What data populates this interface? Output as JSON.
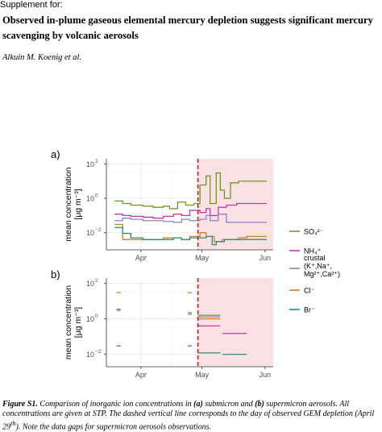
{
  "header": {
    "supplement_label": "Supplement for:",
    "title_line1": "Observed in-plume gaseous elemental mercury depletion suggests significant mercury",
    "title_line2": "scavenging by volcanic aerosols",
    "authors": "Alkuin M. Koenig et al."
  },
  "figure": {
    "caption": "Figure S1. Comparison of inorganic ion concentrations in (a) submicron and (b) supermicron aerosols. All concentrations are given at STP. The dashed vertical line corresponds to the day of observed GEM depletion (April 29th). Note the data gaps for supermicron aerosols observations.",
    "caption_parts": {
      "lead": "Figure S1.",
      "p1": " Comparison of inorganic ion concentrations in ",
      "a": "(a)",
      "p2": " submicron and ",
      "b": "(b)",
      "p3": " supermicron aerosols. All concentrations are given at STP. The dashed vertical line corresponds to the day of observed GEM depletion (April 29",
      "sup": "th",
      "p4": "). Note the data gaps for supermicron aerosols observations."
    },
    "colors": {
      "SO4": "#6a9a22",
      "NH4": "#c03a9e",
      "crustal": "#8a84c0",
      "Cl": "#d97a20",
      "Br": "#2a8f78",
      "shade": "#fbe1e3",
      "dashed_line": "#c81a20",
      "grid": "#e9e9e9"
    },
    "legend": [
      {
        "key": "SO4",
        "lines": [
          "SO₄²⁻"
        ]
      },
      {
        "key": "NH4",
        "lines": [
          "NH₄⁺"
        ]
      },
      {
        "key": "crustal",
        "lines": [
          "crustal",
          "(K⁺,Na⁺,",
          "Mg²⁺,Ca²⁺)"
        ]
      },
      {
        "key": "Cl",
        "lines": [
          "Cl⁻"
        ]
      },
      {
        "key": "Br",
        "lines": [
          "Br⁻"
        ]
      }
    ],
    "panels": [
      {
        "label": "a)",
        "ylabel": "mean concentration",
        "yunit": "[μg m⁻³]",
        "yticks": [
          "10",
          "10",
          "10"
        ],
        "yexp": [
          "2",
          "0",
          "−2"
        ],
        "xticks": [
          "Apr",
          "May",
          "Jun"
        ]
      },
      {
        "label": "b)",
        "ylabel": "mean concentration",
        "yunit": "[μg m⁻³]",
        "yticks": [
          "10",
          "10",
          "10"
        ],
        "yexp": [
          "2",
          "0",
          "−2"
        ],
        "xticks": [
          "Apr",
          "May",
          "Jun"
        ]
      }
    ]
  },
  "chart_data": [
    {
      "type": "line",
      "panel": "a",
      "y_scale": "log",
      "ylim": [
        0.001,
        200
      ],
      "xlim": [
        "2021-03-15",
        "2021-06-05"
      ],
      "event_date": "2021-04-29",
      "shaded_range": [
        "2021-04-29",
        "2021-06-05"
      ],
      "series": [
        {
          "key": "SO4",
          "points": [
            [
              "2021-03-19",
              0.7
            ],
            [
              "2021-03-23",
              0.5
            ],
            [
              "2021-03-27",
              0.4
            ],
            [
              "2021-04-02",
              0.35
            ],
            [
              "2021-04-07",
              0.3
            ],
            [
              "2021-04-12",
              0.35
            ],
            [
              "2021-04-15",
              0.25
            ],
            [
              "2021-04-19",
              0.6
            ],
            [
              "2021-04-23",
              0.4
            ],
            [
              "2021-04-27",
              0.5
            ],
            [
              "2021-04-30",
              6
            ],
            [
              "2021-05-03",
              20
            ],
            [
              "2021-05-05",
              0.5
            ],
            [
              "2021-05-08",
              30
            ],
            [
              "2021-05-10",
              3
            ],
            [
              "2021-05-12",
              1
            ],
            [
              "2021-05-15",
              8
            ],
            [
              "2021-05-19",
              10
            ],
            [
              "2021-05-23",
              10
            ],
            [
              "2021-05-27",
              10
            ]
          ]
        },
        {
          "key": "NH4",
          "points": [
            [
              "2021-03-19",
              0.12
            ],
            [
              "2021-03-23",
              0.1
            ],
            [
              "2021-03-27",
              0.09
            ],
            [
              "2021-04-02",
              0.08
            ],
            [
              "2021-04-07",
              0.07
            ],
            [
              "2021-04-12",
              0.09
            ],
            [
              "2021-04-17",
              0.12
            ],
            [
              "2021-04-21",
              0.1
            ],
            [
              "2021-04-25",
              0.2
            ],
            [
              "2021-04-30",
              0.15
            ],
            [
              "2021-05-03",
              0.25
            ],
            [
              "2021-05-05",
              0.1
            ],
            [
              "2021-05-09",
              0.3
            ],
            [
              "2021-05-13",
              0.4
            ],
            [
              "2021-05-18",
              0.5
            ],
            [
              "2021-05-22",
              0.5
            ],
            [
              "2021-05-27",
              0.5
            ]
          ]
        },
        {
          "key": "crustal",
          "points": [
            [
              "2021-03-19",
              0.05
            ],
            [
              "2021-03-23",
              0.07
            ],
            [
              "2021-03-27",
              0.06
            ],
            [
              "2021-04-02",
              0.05
            ],
            [
              "2021-04-07",
              0.05
            ],
            [
              "2021-04-12",
              0.045
            ],
            [
              "2021-04-17",
              0.04
            ],
            [
              "2021-04-21",
              0.06
            ],
            [
              "2021-04-25",
              0.05
            ],
            [
              "2021-04-30",
              0.06
            ],
            [
              "2021-05-03",
              0.1
            ],
            [
              "2021-05-05",
              0.05
            ],
            [
              "2021-05-09",
              0.12
            ],
            [
              "2021-05-13",
              0.04
            ],
            [
              "2021-05-18",
              0.04
            ],
            [
              "2021-05-22",
              0.04
            ],
            [
              "2021-05-27",
              0.04
            ]
          ]
        },
        {
          "key": "Cl",
          "points": [
            [
              "2021-03-19",
              0.03
            ],
            [
              "2021-03-23",
              0.004
            ],
            [
              "2021-03-27",
              0.004
            ],
            [
              "2021-04-02",
              0.004
            ],
            [
              "2021-04-07",
              0.004
            ],
            [
              "2021-04-12",
              0.005
            ],
            [
              "2021-04-17",
              0.005
            ],
            [
              "2021-04-21",
              0.004
            ],
            [
              "2021-04-25",
              0.006
            ],
            [
              "2021-04-30",
              0.01
            ],
            [
              "2021-05-03",
              0.006
            ],
            [
              "2021-05-07",
              0.003
            ],
            [
              "2021-05-11",
              0.004
            ],
            [
              "2021-05-15",
              0.004
            ],
            [
              "2021-05-19",
              0.005
            ],
            [
              "2021-05-23",
              0.006
            ],
            [
              "2021-05-27",
              0.006
            ]
          ]
        },
        {
          "key": "Br",
          "points": [
            [
              "2021-03-19",
              0.02
            ],
            [
              "2021-03-23",
              0.009
            ],
            [
              "2021-03-27",
              0.005
            ],
            [
              "2021-04-02",
              0.004
            ],
            [
              "2021-04-07",
              0.004
            ],
            [
              "2021-04-12",
              0.004
            ],
            [
              "2021-04-17",
              0.005
            ],
            [
              "2021-04-21",
              0.004
            ],
            [
              "2021-04-25",
              0.005
            ],
            [
              "2021-04-30",
              0.005
            ],
            [
              "2021-05-03",
              0.006
            ],
            [
              "2021-05-06",
              0.002
            ],
            [
              "2021-05-08",
              0.003
            ],
            [
              "2021-05-12",
              0.004
            ],
            [
              "2021-05-17",
              0.004
            ],
            [
              "2021-05-21",
              0.004
            ],
            [
              "2021-05-27",
              0.004
            ]
          ]
        }
      ]
    },
    {
      "type": "line",
      "panel": "b",
      "y_scale": "log",
      "ylim": [
        0.002,
        200
      ],
      "xlim": [
        "2021-03-15",
        "2021-06-05"
      ],
      "event_date": "2021-04-29",
      "shaded_range": [
        "2021-04-29",
        "2021-06-05"
      ],
      "segments": [
        {
          "key": "Cl",
          "start": "2021-03-20",
          "end": "2021-03-22",
          "value": 30
        },
        {
          "key": "Cl",
          "start": "2021-04-24",
          "end": "2021-04-26",
          "value": 30
        },
        {
          "key": "Cl",
          "start": "2021-04-29",
          "end": "2021-05-10",
          "value": 1.0
        },
        {
          "key": "SO4",
          "start": "2021-03-20",
          "end": "2021-03-22",
          "value": 3.5
        },
        {
          "key": "SO4",
          "start": "2021-04-24",
          "end": "2021-04-26",
          "value": 2.2
        },
        {
          "key": "SO4",
          "start": "2021-04-29",
          "end": "2021-05-10",
          "value": 1.6
        },
        {
          "key": "crustal",
          "start": "2021-03-20",
          "end": "2021-03-22",
          "value": 3.0
        },
        {
          "key": "crustal",
          "start": "2021-04-24",
          "end": "2021-04-26",
          "value": 1.8
        },
        {
          "key": "crustal",
          "start": "2021-04-29",
          "end": "2021-05-10",
          "value": 1.3
        },
        {
          "key": "NH4",
          "start": "2021-03-20",
          "end": "2021-03-22",
          "value": 0.03
        },
        {
          "key": "NH4",
          "start": "2021-04-24",
          "end": "2021-04-26",
          "value": 0.03
        },
        {
          "key": "NH4",
          "start": "2021-04-29",
          "end": "2021-05-10",
          "value": 0.4
        },
        {
          "key": "NH4",
          "start": "2021-05-11",
          "end": "2021-05-23",
          "value": 0.15
        },
        {
          "key": "Br",
          "start": "2021-04-29",
          "end": "2021-05-10",
          "value": 0.012
        },
        {
          "key": "Br",
          "start": "2021-05-11",
          "end": "2021-05-23",
          "value": 0.01
        }
      ]
    }
  ]
}
